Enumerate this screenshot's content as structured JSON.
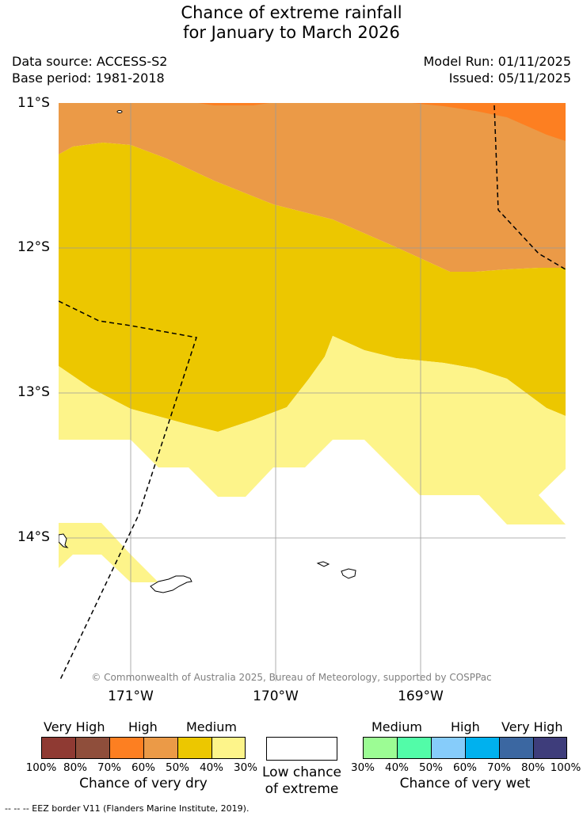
{
  "title": {
    "line1": "Chance of extreme rainfall",
    "line2": "for January to March 2026"
  },
  "meta": {
    "data_source": "Data source: ACCESS-S2",
    "base_period": "Base period: 1981-2018",
    "model_run": "Model Run: 01/11/2025",
    "issued": "Issued: 05/11/2025"
  },
  "map": {
    "lat_labels": [
      "11°S",
      "12°S",
      "13°S",
      "14°S"
    ],
    "lon_labels": [
      "171°W",
      "170°W",
      "169°W"
    ],
    "copyright": "© Commonwealth of Australia 2025, Bureau of Meteorology, supported by COSPPac",
    "zone_colors": {
      "high_dry_70": "#fd7f21",
      "high_dry_60": "#eb9a47",
      "medium_dry_50": "#ecc700",
      "medium_dry_40": "#fdf48a"
    }
  },
  "legend": {
    "dry": {
      "headers": [
        "Very High",
        "High",
        "Medium"
      ],
      "colors": [
        "#8f3a33",
        "#8f4e3b",
        "#fd7f21",
        "#eb9a47",
        "#ecc700",
        "#fdf48a"
      ],
      "ticks": [
        "100%",
        "80%",
        "70%",
        "60%",
        "50%",
        "40%",
        "30%"
      ],
      "caption": "Chance of very dry"
    },
    "low": {
      "caption_line1": "Low chance",
      "caption_line2": "of extreme"
    },
    "wet": {
      "headers": [
        "Medium",
        "High",
        "Very High"
      ],
      "colors": [
        "#9cfc94",
        "#52fca8",
        "#86ccfa",
        "#00b1ee",
        "#3b67a1",
        "#3e3d7b"
      ],
      "ticks": [
        "30%",
        "40%",
        "50%",
        "60%",
        "70%",
        "80%",
        "100%"
      ],
      "caption": "Chance of very wet"
    }
  },
  "footer": "-- -- -- EEZ border V11 (Flanders Marine Institute, 2019)."
}
